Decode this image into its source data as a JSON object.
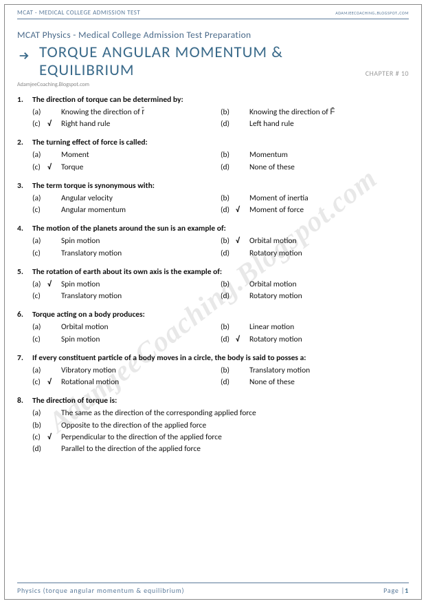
{
  "header": {
    "left": "MCAT  - MEDICAL COLLEGE ADMISSION TEST",
    "right": "adamjeecoaching.blogspot.com"
  },
  "subject": "MCAT Physics - Medical College Admission Test Preparation",
  "title": "TORQUE ANGULAR MOMENTUM & EQUILIBRIUM",
  "chapter": "CHAPTER # 10",
  "subsite": "AdamjeeCoaching.Blogspot.com",
  "watermark": "AdamjeeCoaching.Blogspot.com",
  "colors": {
    "heading": "#3a6a8a",
    "subheading": "#4a6a8a",
    "rule": "#5a7a9a",
    "muted": "#999",
    "text": "#111",
    "watermark": "rgba(0,0,0,0.09)"
  },
  "footer": {
    "left": "Physics (torque angular momentum & equilibrium)",
    "right_label": "Page |",
    "page_num": "1"
  },
  "questions": [
    {
      "n": "1.",
      "text": "The direction of torque can be determined by:",
      "layout": "two-col",
      "opts": [
        {
          "l": "(a)",
          "t": "Knowing the direction of r̄",
          "c": false
        },
        {
          "l": "(b)",
          "t": "Knowing the direction of F̄",
          "c": false
        },
        {
          "l": "(c)",
          "t": "Right hand rule",
          "c": true
        },
        {
          "l": "(d)",
          "t": "Left hand rule",
          "c": false
        }
      ]
    },
    {
      "n": "2.",
      "text": "The turning effect of force is called:",
      "layout": "two-col",
      "opts": [
        {
          "l": "(a)",
          "t": "Moment",
          "c": false
        },
        {
          "l": "(b)",
          "t": "Momentum",
          "c": false
        },
        {
          "l": "(c)",
          "t": "Torque",
          "c": true
        },
        {
          "l": "(d)",
          "t": "None of these",
          "c": false
        }
      ]
    },
    {
      "n": "3.",
      "text": "The term torque is synonymous with:",
      "layout": "two-col",
      "opts": [
        {
          "l": "(a)",
          "t": "Angular velocity",
          "c": false
        },
        {
          "l": "(b)",
          "t": "Moment of inertia",
          "c": false
        },
        {
          "l": "(c)",
          "t": "Angular momentum",
          "c": false
        },
        {
          "l": "(d)",
          "t": "Moment of force",
          "c": true
        }
      ]
    },
    {
      "n": "4.",
      "text": "The motion of the planets around the sun is an example of:",
      "layout": "two-col",
      "opts": [
        {
          "l": "(a)",
          "t": "Spin motion",
          "c": false
        },
        {
          "l": "(b)",
          "t": "Orbital motion",
          "c": true
        },
        {
          "l": "(c)",
          "t": "Translatory motion",
          "c": false
        },
        {
          "l": "(d)",
          "t": "Rotatory motion",
          "c": false
        }
      ]
    },
    {
      "n": "5.",
      "text": "The rotation of earth about its own axis is the example of:",
      "layout": "two-col",
      "opts": [
        {
          "l": "(a)",
          "t": "Spin motion",
          "c": true
        },
        {
          "l": "(b)",
          "t": "Orbital motion",
          "c": false
        },
        {
          "l": "(c)",
          "t": "Translatory motion",
          "c": false
        },
        {
          "l": "(d)",
          "t": "Rotatory motion",
          "c": false
        }
      ]
    },
    {
      "n": "6.",
      "text": "Torque acting on a body produces:",
      "layout": "two-col",
      "opts": [
        {
          "l": "(a)",
          "t": "Orbital motion",
          "c": false
        },
        {
          "l": "(b)",
          "t": "Linear motion",
          "c": false
        },
        {
          "l": "(c)",
          "t": "Spin motion",
          "c": false
        },
        {
          "l": "(d)",
          "t": "Rotatory motion",
          "c": true
        }
      ]
    },
    {
      "n": "7.",
      "text": "If every constituent particle of a body moves in a circle, the body is said to posses a:",
      "layout": "two-col",
      "opts": [
        {
          "l": "(a)",
          "t": "Vibratory motion",
          "c": false
        },
        {
          "l": "(b)",
          "t": "Translatory motion",
          "c": false
        },
        {
          "l": "(c)",
          "t": "Rotational motion",
          "c": true
        },
        {
          "l": "(d)",
          "t": "None of these",
          "c": false
        }
      ]
    },
    {
      "n": "8.",
      "text": "The direction of torque is:",
      "layout": "one-col",
      "opts": [
        {
          "l": "(a)",
          "t": "The same as the direction of the corresponding applied force",
          "c": false
        },
        {
          "l": "(b)",
          "t": "Opposite to the direction of the applied force",
          "c": false
        },
        {
          "l": "(c)",
          "t": "Perpendicular to the direction of the applied force",
          "c": true
        },
        {
          "l": "(d)",
          "t": "Parallel to the direction of the applied force",
          "c": false
        }
      ]
    }
  ]
}
